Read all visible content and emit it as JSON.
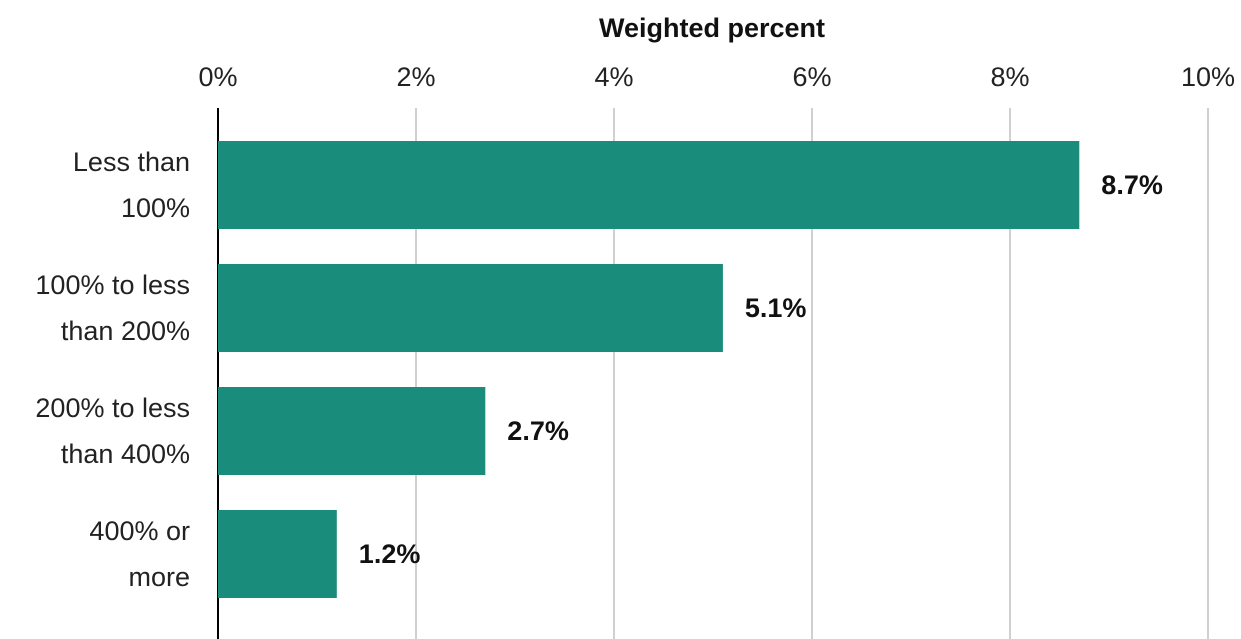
{
  "chart_data": {
    "type": "bar",
    "orientation": "horizontal",
    "title": "",
    "xlabel": "Weighted percent",
    "ylabel": "",
    "xlim": [
      0,
      10
    ],
    "x_ticks": [
      "0%",
      "2%",
      "4%",
      "6%",
      "8%",
      "10%"
    ],
    "x_axis_position": "top",
    "grid": true,
    "legend": "none",
    "categories": [
      [
        "Less than",
        "100%"
      ],
      [
        "100% to less",
        "than 200%"
      ],
      [
        "200% to less",
        "than 400%"
      ],
      [
        "400% or",
        "more"
      ]
    ],
    "values": [
      8.7,
      5.1,
      2.7,
      1.2
    ],
    "data_labels": [
      "8.7%",
      "5.1%",
      "2.7%",
      "1.2%"
    ],
    "bar_color": "#1a8c7b"
  }
}
